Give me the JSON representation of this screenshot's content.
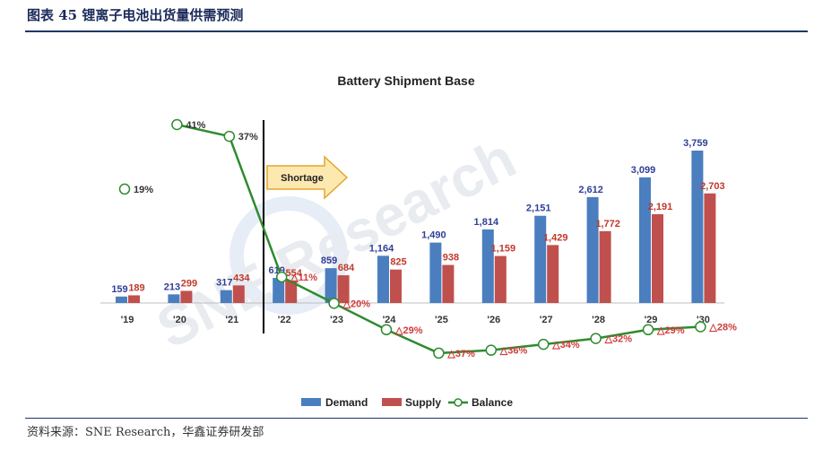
{
  "header": {
    "title": "图表 45 锂离子电池出货量供需预测"
  },
  "footer": {
    "source": "资料来源：SNE Research，华鑫证券研发部"
  },
  "chart_data": {
    "type": "bar",
    "title": "Battery Shipment Base",
    "categories": [
      "'19",
      "'20",
      "'21",
      "'22",
      "'23",
      "'24",
      "'25",
      "'26",
      "'27",
      "'28",
      "'29",
      "'30"
    ],
    "series": [
      {
        "name": "Demand",
        "color": "#4a7ebf",
        "values": [
          159,
          213,
          317,
          619,
          859,
          1164,
          1490,
          1814,
          2151,
          2612,
          3099,
          3759
        ],
        "labels": [
          "159",
          "213",
          "317",
          "619",
          "859",
          "1,164",
          "1,490",
          "1,814",
          "2,151",
          "2,612",
          "3,099",
          "3,759"
        ]
      },
      {
        "name": "Supply",
        "color": "#c0504d",
        "values": [
          189,
          299,
          434,
          554,
          684,
          825,
          938,
          1159,
          1429,
          1772,
          2191,
          2703
        ],
        "labels": [
          "189",
          "299",
          "434",
          "554",
          "684",
          "825",
          "938",
          "1,159",
          "1,429",
          "1,772",
          "2,191",
          "2,703"
        ]
      },
      {
        "name": "Balance",
        "type": "line",
        "color": "#2e8b2e",
        "values": [
          19,
          41,
          37,
          -11,
          -20,
          -29,
          -37,
          -36,
          -34,
          -32,
          -29,
          -28
        ],
        "labels": [
          "19%",
          "41%",
          "37%",
          "△11%",
          "△20%",
          "△29%",
          "△37%",
          "△36%",
          "△34%",
          "△32%",
          "△29%",
          "△28%"
        ]
      }
    ],
    "annotation": {
      "text": "Shortage"
    },
    "legend": {
      "position": "bottom",
      "entries": [
        "Demand",
        "Supply",
        "Balance"
      ]
    },
    "watermark": {
      "text": "SNE Research"
    }
  }
}
